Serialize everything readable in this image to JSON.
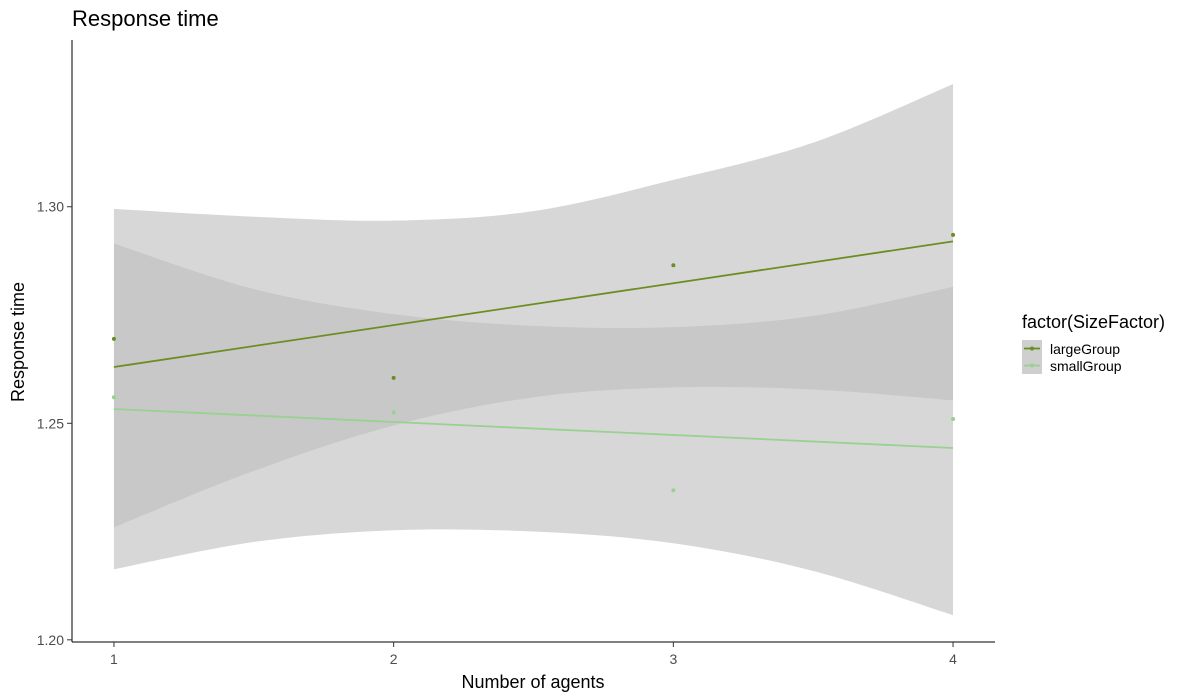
{
  "chart_data": {
    "type": "line",
    "title": "Response time",
    "xlabel": "Number of agents",
    "ylabel": "Response time",
    "xlim": [
      0.85,
      4.15
    ],
    "ylim": [
      1.1995,
      1.3385
    ],
    "x_ticks": [
      1,
      2,
      3,
      4
    ],
    "x_tick_labels": [
      "1",
      "2",
      "3",
      "4"
    ],
    "y_ticks": [
      1.2,
      1.25,
      1.3
    ],
    "y_tick_labels": [
      "1.20",
      "1.25",
      "1.30"
    ],
    "grid": false,
    "legend": {
      "title": "factor(SizeFactor)",
      "placement": "right"
    },
    "series": [
      {
        "name": "largeGroup",
        "color": "#6b8e23",
        "points": [
          {
            "x": 1,
            "y": 1.2695
          },
          {
            "x": 2,
            "y": 1.2605
          },
          {
            "x": 3,
            "y": 1.2865
          },
          {
            "x": 4,
            "y": 1.2935
          }
        ],
        "fit": {
          "x": [
            1,
            4
          ],
          "y": [
            1.263,
            1.292
          ]
        },
        "ci": {
          "x": [
            1,
            1.5,
            2,
            2.5,
            3,
            3.5,
            4
          ],
          "lower": [
            1.226,
            1.239,
            1.2495,
            1.256,
            1.2583,
            1.2578,
            1.2553
          ],
          "upper": [
            1.2915,
            1.281,
            1.2752,
            1.2725,
            1.2722,
            1.2748,
            1.2815
          ]
        }
      },
      {
        "name": "smallGroup",
        "color": "#98d190",
        "points": [
          {
            "x": 1,
            "y": 1.256
          },
          {
            "x": 2,
            "y": 1.2525
          },
          {
            "x": 3,
            "y": 1.2345
          },
          {
            "x": 4,
            "y": 1.251
          }
        ],
        "fit": {
          "x": [
            1,
            4
          ],
          "y": [
            1.2533,
            1.2443
          ]
        },
        "ci": {
          "x": [
            1,
            1.5,
            2,
            2.5,
            3,
            3.5,
            4
          ],
          "lower": [
            1.2163,
            1.2226,
            1.2253,
            1.225,
            1.2223,
            1.2159,
            1.2057
          ],
          "upper": [
            1.2995,
            1.2977,
            1.2968,
            1.299,
            1.3062,
            1.3148,
            1.3283
          ]
        }
      }
    ],
    "ci_color": "#bfbfbf",
    "ci_opacity": 0.62
  }
}
